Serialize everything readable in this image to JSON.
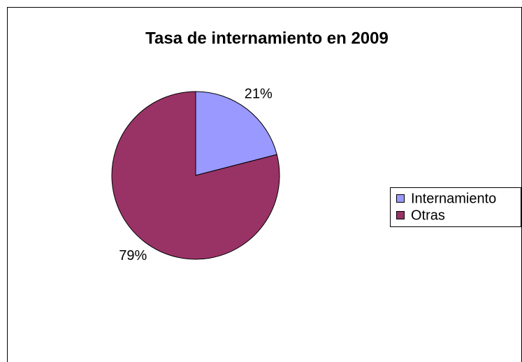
{
  "chart_data": {
    "type": "pie",
    "title": "Tasa de internamiento en 2009",
    "categories": [
      "Internamiento",
      "Otras"
    ],
    "values": [
      21,
      79
    ],
    "value_labels": [
      "21%",
      "79%"
    ],
    "colors": [
      "#9999ff",
      "#993366"
    ],
    "legend": "right"
  }
}
